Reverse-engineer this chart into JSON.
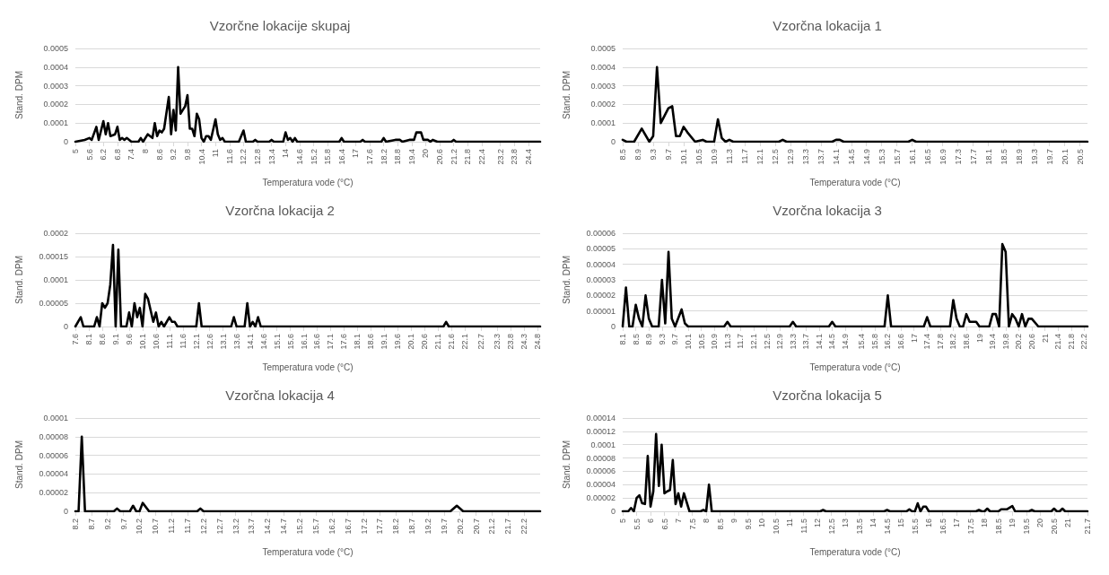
{
  "chart_data": [
    {
      "type": "line",
      "title": "Vzorčne lokacije skupaj",
      "xlabel": "Temperatura vode (°C)",
      "ylabel": "Stand. DPM",
      "color": "#000000",
      "marker": "none",
      "line_style": "solid",
      "grid": "y",
      "xlim": [
        5,
        24.9
      ],
      "xticks": [
        5,
        5.6,
        6.2,
        6.8,
        7.4,
        8,
        8.6,
        9.2,
        9.8,
        10.4,
        11,
        11.6,
        12.2,
        12.8,
        13.4,
        14,
        14.6,
        15.2,
        15.8,
        16.4,
        17,
        17.6,
        18.2,
        18.8,
        19.4,
        20,
        20.6,
        21.2,
        21.8,
        22.4,
        23.2,
        23.8,
        24.4
      ],
      "ylim": [
        0,
        0.0005
      ],
      "yticks": [
        0,
        0.0001,
        0.0002,
        0.0003,
        0.0004,
        0.0005
      ],
      "x": [
        5,
        5.4,
        5.6,
        5.7,
        5.9,
        6,
        6.2,
        6.3,
        6.4,
        6.5,
        6.7,
        6.8,
        6.9,
        7,
        7.1,
        7.2,
        7.4,
        7.7,
        7.8,
        7.9,
        8.1,
        8.3,
        8.4,
        8.5,
        8.6,
        8.7,
        8.8,
        9,
        9.1,
        9.2,
        9.3,
        9.4,
        9.5,
        9.6,
        9.7,
        9.8,
        9.9,
        10,
        10.1,
        10.2,
        10.3,
        10.4,
        10.5,
        10.6,
        10.7,
        10.8,
        11,
        11.1,
        11.2,
        11.3,
        11.4,
        12,
        12.2,
        12.3,
        12.6,
        12.7,
        12.8,
        13.3,
        13.4,
        13.5,
        13.9,
        14,
        14.1,
        14.2,
        14.3,
        14.4,
        14.5,
        16.3,
        16.4,
        16.5,
        17.2,
        17.3,
        17.4,
        18.1,
        18.2,
        18.3,
        18.7,
        18.9,
        19,
        19.3,
        19.5,
        19.6,
        19.8,
        19.9,
        20.1,
        20.2,
        20.3,
        20.5,
        21.1,
        21.2,
        21.3,
        24.9
      ],
      "values": [
        0,
        1e-05,
        2e-05,
        1e-05,
        8e-05,
        1e-05,
        0.00011,
        4e-05,
        0.0001,
        3e-05,
        4e-05,
        8e-05,
        1e-05,
        2e-05,
        1e-05,
        2e-05,
        0,
        0,
        2e-05,
        0,
        4e-05,
        2e-05,
        0.0001,
        3e-05,
        6e-05,
        5e-05,
        7e-05,
        0.00024,
        4e-05,
        0.00017,
        6e-05,
        0.0004,
        0.00015,
        0.00017,
        0.00019,
        0.00025,
        7e-05,
        7e-05,
        3e-05,
        0.00015,
        0.00012,
        2e-05,
        0,
        3e-05,
        3e-05,
        1e-05,
        0.00012,
        4e-05,
        1e-05,
        2e-05,
        0,
        0,
        6e-05,
        0,
        0,
        1e-05,
        0,
        0,
        1e-05,
        0,
        0,
        5e-05,
        1e-05,
        2e-05,
        0,
        2e-05,
        0,
        0,
        2e-05,
        0,
        0,
        1e-05,
        0,
        0,
        2e-05,
        0,
        1e-05,
        1e-05,
        0,
        1e-05,
        1e-05,
        5e-05,
        5e-05,
        1e-05,
        1e-05,
        0,
        1e-05,
        0,
        0,
        1e-05,
        0,
        0
      ]
    },
    {
      "type": "line",
      "title": "Vzorčna lokacija 1",
      "xlabel": "Temperatura vode (°C)",
      "ylabel": "Stand. DPM",
      "color": "#000000",
      "marker": "none",
      "line_style": "solid",
      "grid": "y",
      "xlim": [
        8.5,
        20.7
      ],
      "xticks": [
        8.5,
        8.9,
        9.3,
        9.7,
        10.1,
        10.5,
        10.9,
        11.3,
        11.7,
        12.1,
        12.5,
        12.9,
        13.3,
        13.7,
        14.1,
        14.5,
        14.9,
        15.3,
        15.7,
        16.1,
        16.5,
        16.9,
        17.3,
        17.7,
        18.1,
        18.5,
        18.9,
        19.3,
        19.7,
        20.1,
        20.5
      ],
      "ylim": [
        0,
        0.0005
      ],
      "yticks": [
        0,
        0.0001,
        0.0002,
        0.0003,
        0.0004,
        0.0005
      ],
      "x": [
        8.5,
        8.6,
        8.8,
        9,
        9.2,
        9.3,
        9.4,
        9.5,
        9.7,
        9.8,
        9.9,
        10,
        10.1,
        10.2,
        10.4,
        10.6,
        10.7,
        10.9,
        11,
        11.1,
        11.2,
        11.3,
        11.4,
        12.6,
        12.7,
        12.8,
        14,
        14.1,
        14.2,
        14.3,
        16,
        16.1,
        16.2,
        20.7
      ],
      "values": [
        1e-05,
        0,
        0,
        7e-05,
        0,
        3e-05,
        0.0004,
        0.0001,
        0.00018,
        0.00019,
        3e-05,
        3e-05,
        8e-05,
        5e-05,
        0,
        1e-05,
        0,
        0,
        0.00012,
        2e-05,
        0,
        1e-05,
        0,
        0,
        1e-05,
        0,
        0,
        1e-05,
        1e-05,
        0,
        0,
        1e-05,
        0,
        0
      ]
    },
    {
      "type": "line",
      "title": "Vzorčna lokacija 2",
      "xlabel": "Temperatura vode (°C)",
      "ylabel": "Stand. DPM",
      "color": "#000000",
      "marker": "none",
      "line_style": "solid",
      "grid": "y",
      "xlim": [
        7.6,
        24.9
      ],
      "xticks": [
        7.6,
        8.1,
        8.6,
        9.1,
        9.6,
        10.1,
        10.6,
        11.1,
        11.6,
        12.1,
        12.6,
        13.1,
        13.6,
        14.1,
        14.6,
        15.1,
        15.6,
        16.1,
        16.6,
        17.1,
        17.6,
        18.1,
        18.6,
        19.1,
        19.6,
        20.1,
        20.6,
        21.1,
        21.6,
        22.1,
        22.7,
        23.3,
        23.8,
        24.3,
        24.8
      ],
      "ylim": [
        0,
        0.0002
      ],
      "yticks": [
        0,
        {
          "value": 5e-05,
          "label": "0.00005"
        },
        0.0001,
        0.00015,
        0.0002
      ],
      "x": [
        7.6,
        7.8,
        7.9,
        8.3,
        8.4,
        8.5,
        8.6,
        8.7,
        8.8,
        8.9,
        9,
        9.1,
        9.2,
        9.3,
        9.5,
        9.6,
        9.7,
        9.8,
        9.9,
        10,
        10.1,
        10.2,
        10.3,
        10.5,
        10.6,
        10.7,
        10.8,
        10.9,
        11.1,
        11.2,
        11.3,
        11.4,
        12.1,
        12.2,
        12.3,
        13.4,
        13.5,
        13.6,
        13.9,
        14,
        14.1,
        14.2,
        14.3,
        14.4,
        14.5,
        21.3,
        21.4,
        21.5,
        24.9
      ],
      "values": [
        0,
        2e-05,
        0,
        0,
        2e-05,
        0,
        5e-05,
        4e-05,
        5e-05,
        9e-05,
        0.000175,
        0,
        0.000165,
        0,
        0,
        3e-05,
        0,
        5e-05,
        2e-05,
        4e-05,
        0,
        7e-05,
        6e-05,
        1e-05,
        3e-05,
        0,
        1e-05,
        0,
        2e-05,
        1e-05,
        1e-05,
        0,
        0,
        5e-05,
        0,
        0,
        2e-05,
        0,
        0,
        5e-05,
        0,
        1e-05,
        0,
        2e-05,
        0,
        0,
        1e-05,
        0,
        0
      ]
    },
    {
      "type": "line",
      "title": "Vzorčna lokacija 3",
      "xlabel": "Temperatura vode (°C)",
      "ylabel": "Stand. DPM",
      "color": "#000000",
      "marker": "none",
      "line_style": "solid",
      "grid": "y",
      "xlim": [
        8.1,
        22.3
      ],
      "xticks": [
        8.1,
        8.5,
        8.9,
        9.3,
        9.7,
        10.1,
        10.5,
        10.9,
        11.3,
        11.7,
        12.1,
        12.5,
        12.9,
        13.3,
        13.7,
        14.1,
        14.5,
        14.9,
        15.4,
        15.8,
        16.2,
        16.6,
        17,
        17.4,
        17.8,
        18.2,
        18.6,
        19,
        19.4,
        19.8,
        20.2,
        20.6,
        21,
        21.4,
        21.8,
        22.2
      ],
      "ylim": [
        0,
        6e-05
      ],
      "yticks": [
        0,
        {
          "value": 1e-05,
          "label": "0.00001"
        },
        {
          "value": 2e-05,
          "label": "0.00002"
        },
        {
          "value": 3e-05,
          "label": "0.00003"
        },
        {
          "value": 4e-05,
          "label": "0.00004"
        },
        {
          "value": 5e-05,
          "label": "0.00005"
        },
        {
          "value": 6e-05,
          "label": "0.00006"
        }
      ],
      "x": [
        8.1,
        8.2,
        8.3,
        8.4,
        8.5,
        8.6,
        8.7,
        8.8,
        8.9,
        9,
        9.2,
        9.3,
        9.4,
        9.5,
        9.6,
        9.7,
        9.9,
        10,
        10.1,
        11.2,
        11.3,
        11.4,
        13.2,
        13.3,
        13.4,
        14.4,
        14.5,
        14.6,
        16.1,
        16.2,
        16.3,
        17.3,
        17.4,
        17.5,
        18.1,
        18.2,
        18.3,
        18.4,
        18.5,
        18.6,
        18.7,
        18.9,
        19,
        19.3,
        19.4,
        19.5,
        19.6,
        19.7,
        19.8,
        19.9,
        20,
        20.1,
        20.2,
        20.3,
        20.4,
        20.5,
        20.6,
        20.8,
        22.3
      ],
      "values": [
        0,
        2.5e-05,
        0,
        0,
        1.4e-05,
        5e-06,
        0,
        2e-05,
        5e-06,
        0,
        0,
        3e-05,
        2e-06,
        4.8e-05,
        5e-06,
        0,
        1.1e-05,
        2e-06,
        0,
        0,
        3e-06,
        0,
        0,
        3e-06,
        0,
        0,
        3e-06,
        0,
        0,
        2e-05,
        0,
        0,
        6e-06,
        0,
        0,
        1.7e-05,
        5e-06,
        0,
        0,
        8e-06,
        3e-06,
        3e-06,
        0,
        0,
        8e-06,
        8e-06,
        0,
        5.3e-05,
        4.8e-05,
        0,
        8e-06,
        5e-06,
        0,
        8e-06,
        0,
        5e-06,
        5e-06,
        0,
        0
      ]
    },
    {
      "type": "line",
      "title": "Vzorčna lokacija 4",
      "xlabel": "Temperatura vode (°C)",
      "ylabel": "Stand. DPM",
      "color": "#000000",
      "marker": "none",
      "line_style": "solid",
      "grid": "y",
      "xlim": [
        8.2,
        22.7
      ],
      "xticks": [
        8.2,
        8.7,
        9.2,
        9.7,
        10.2,
        10.7,
        11.2,
        11.7,
        12.2,
        12.7,
        13.2,
        13.7,
        14.2,
        14.7,
        15.2,
        15.7,
        16.2,
        16.7,
        17.2,
        17.7,
        18.2,
        18.7,
        19.2,
        19.7,
        20.2,
        20.7,
        21.2,
        21.7,
        22.2
      ],
      "ylim": [
        0,
        0.0001
      ],
      "yticks": [
        0,
        {
          "value": 2e-05,
          "label": "0.00002"
        },
        {
          "value": 4e-05,
          "label": "0.00004"
        },
        {
          "value": 6e-05,
          "label": "0.00006"
        },
        {
          "value": 8e-05,
          "label": "0.00008"
        },
        0.0001
      ],
      "x": [
        8.2,
        8.3,
        8.4,
        8.5,
        9.4,
        9.5,
        9.6,
        9.9,
        10,
        10.1,
        10.2,
        10.3,
        10.5,
        12,
        12.1,
        12.2,
        19.9,
        20.1,
        20.3,
        22.7
      ],
      "values": [
        0,
        0,
        8e-05,
        0,
        0,
        3e-06,
        0,
        0,
        6e-06,
        0,
        0,
        9e-06,
        0,
        0,
        3e-06,
        0,
        0,
        6e-06,
        0,
        0
      ]
    },
    {
      "type": "line",
      "title": "Vzorčna lokacija 5",
      "xlabel": "Temperatura vode (°C)",
      "ylabel": "Stand. DPM",
      "color": "#000000",
      "marker": "none",
      "line_style": "solid",
      "grid": "y",
      "xlim": [
        5,
        21.7
      ],
      "xticks": [
        5,
        5.5,
        6,
        6.5,
        7,
        7.5,
        8,
        8.5,
        9,
        9.5,
        10,
        10.5,
        11,
        11.5,
        12,
        12.5,
        13,
        13.5,
        14,
        14.5,
        15,
        15.5,
        16,
        16.5,
        17,
        17.5,
        18,
        18.5,
        19,
        19.5,
        20,
        20.5,
        21,
        21.7
      ],
      "ylim": [
        0,
        0.00014
      ],
      "yticks": [
        0,
        {
          "value": 2e-05,
          "label": "0.00002"
        },
        {
          "value": 4e-05,
          "label": "0.00004"
        },
        {
          "value": 6e-05,
          "label": "0.00006"
        },
        {
          "value": 8e-05,
          "label": "0.00008"
        },
        0.0001,
        0.00012,
        0.00014
      ],
      "x": [
        5,
        5.2,
        5.3,
        5.4,
        5.5,
        5.6,
        5.7,
        5.8,
        5.9,
        6,
        6.1,
        6.2,
        6.3,
        6.4,
        6.5,
        6.6,
        6.7,
        6.8,
        6.9,
        7,
        7.1,
        7.2,
        7.4,
        7.8,
        7.9,
        8,
        8.1,
        8.2,
        12.1,
        12.2,
        12.3,
        14.4,
        14.5,
        14.6,
        15.2,
        15.3,
        15.4,
        15.5,
        15.6,
        15.7,
        15.8,
        15.9,
        16,
        17.7,
        17.8,
        17.9,
        18,
        18.1,
        18.2,
        18.5,
        18.6,
        18.8,
        19,
        19.1,
        19.6,
        19.7,
        19.8,
        20.4,
        20.5,
        20.6,
        20.7,
        20.8,
        20.9,
        21.7
      ],
      "values": [
        0,
        0,
        5e-06,
        0,
        2e-05,
        2.4e-05,
        1.2e-05,
        1.1e-05,
        8.3e-05,
        7e-06,
        3e-05,
        0.000116,
        3.8e-05,
        0.0001,
        2.7e-05,
        3e-05,
        3.2e-05,
        7.7e-05,
        1.1e-05,
        2.7e-05,
        7e-06,
        2.7e-05,
        0,
        0,
        2e-06,
        0,
        4e-05,
        0,
        0,
        2e-06,
        0,
        0,
        2e-06,
        0,
        0,
        3e-06,
        0,
        0,
        1.2e-05,
        0,
        7e-06,
        7e-06,
        0,
        0,
        2e-06,
        0,
        0,
        4e-06,
        0,
        0,
        3e-06,
        3e-06,
        8e-06,
        0,
        0,
        2e-06,
        0,
        0,
        4e-06,
        0,
        0,
        4e-06,
        0,
        0
      ]
    }
  ]
}
